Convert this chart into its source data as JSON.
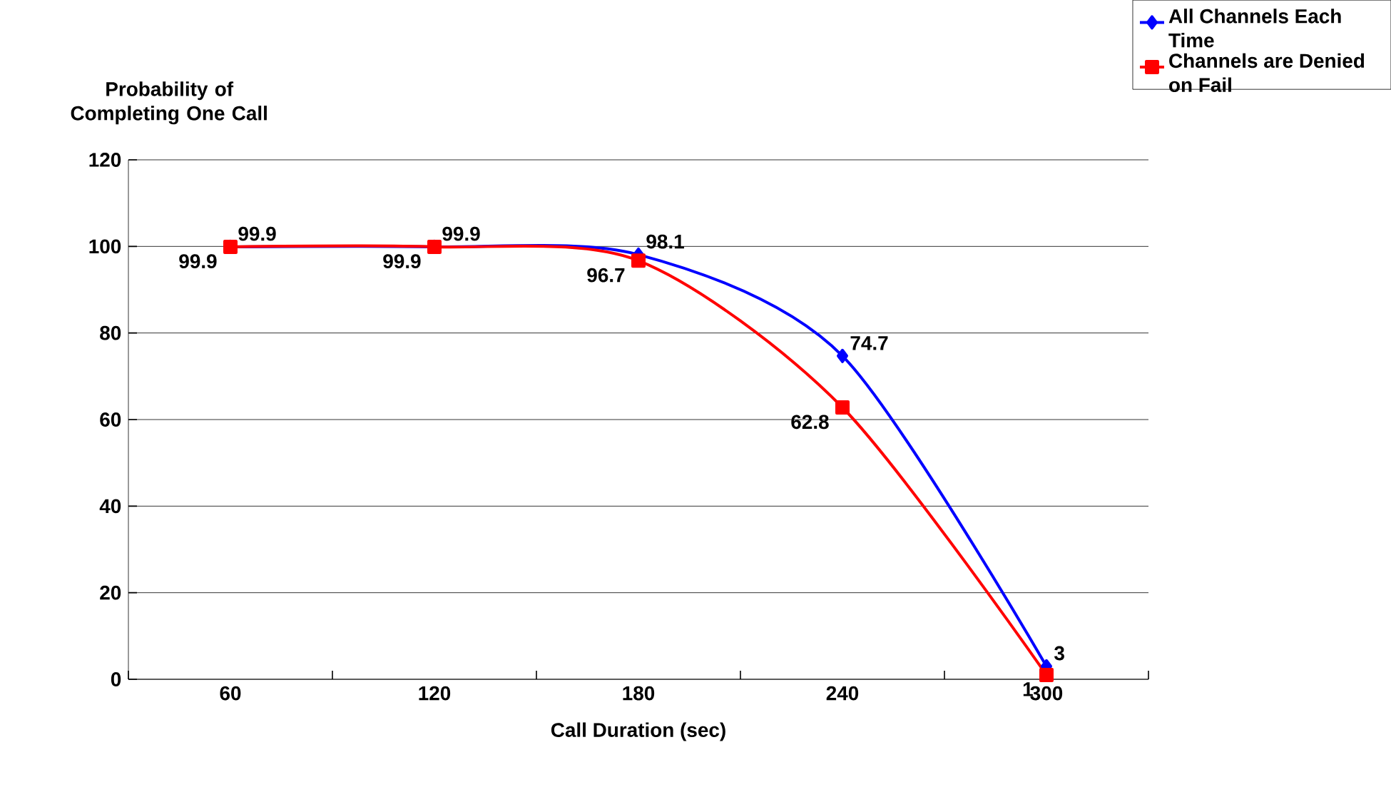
{
  "chart_data": {
    "type": "line",
    "xlabel": "Call Duration (sec)",
    "ylabel": "Probability of Completing One Call",
    "categories": [
      "60",
      "120",
      "180",
      "240",
      "300"
    ],
    "series": [
      {
        "name": "All Channels Each Time",
        "color": "#0000ff",
        "marker": "diamond",
        "values": [
          99.9,
          99.9,
          98.1,
          74.7,
          3
        ]
      },
      {
        "name": "Channels are Denied on Fail",
        "color": "#ff0000",
        "marker": "square",
        "values": [
          99.9,
          99.9,
          96.7,
          62.8,
          1
        ]
      }
    ],
    "ylim": [
      0,
      120
    ],
    "yticks": [
      0,
      20,
      40,
      60,
      80,
      100,
      120
    ],
    "grid": "y",
    "legend": "top right",
    "data_labels": true
  }
}
